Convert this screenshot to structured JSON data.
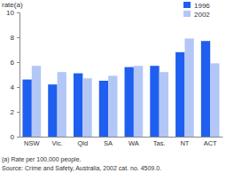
{
  "chart_data": {
    "type": "bar",
    "y_label": "rate(a)",
    "categories": [
      "NSW",
      "Vic.",
      "Qld",
      "SA",
      "WA",
      "Tas.",
      "NT",
      "ACT"
    ],
    "series": [
      {
        "name": "1996",
        "color": "#1f5fef",
        "values": [
          4.6,
          4.2,
          5.1,
          4.5,
          5.6,
          5.7,
          6.8,
          7.7
        ]
      },
      {
        "name": "2002",
        "color": "#b3c7f7",
        "values": [
          5.7,
          5.2,
          4.7,
          4.9,
          5.7,
          5.2,
          7.9,
          5.9
        ]
      }
    ],
    "ylim": [
      0,
      10
    ],
    "yticks": [
      0,
      2,
      4,
      6,
      8,
      10
    ],
    "grid": false,
    "legend": "top-right",
    "annotations": [
      "(a) Rate per 100,000 people.",
      "Source: Crime and Safety, Australia, 2002 cat. no. 4509.0."
    ]
  }
}
